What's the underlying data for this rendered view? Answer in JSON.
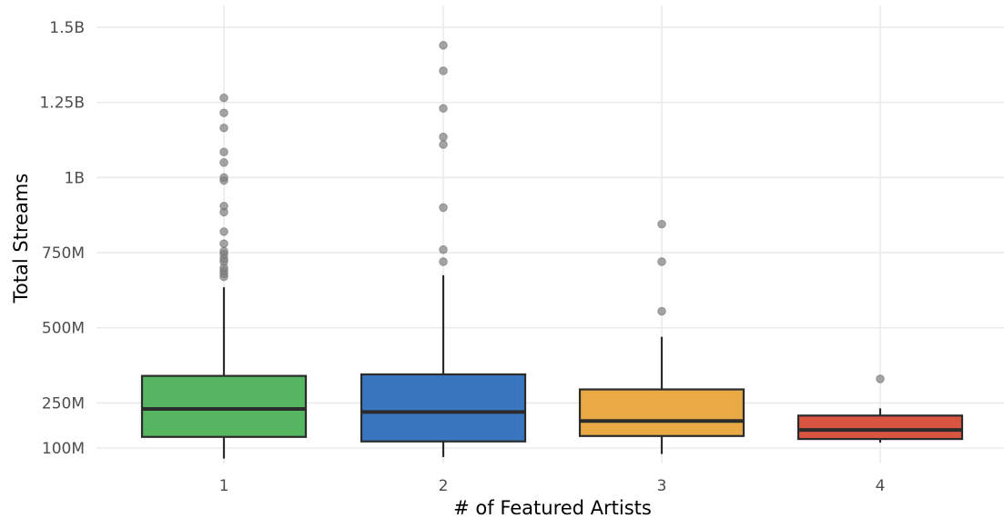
{
  "chart_data": {
    "type": "boxplot",
    "title": "",
    "xlabel": "# of Featured Artists",
    "ylabel": "Total Streams",
    "categories": [
      "1",
      "2",
      "3",
      "4"
    ],
    "y_ticks": [
      {
        "value": 100000000,
        "label": "100M"
      },
      {
        "value": 250000000,
        "label": "250M"
      },
      {
        "value": 500000000,
        "label": "500M"
      },
      {
        "value": 750000000,
        "label": "750M"
      },
      {
        "value": 1000000000,
        "label": "1B"
      },
      {
        "value": 1250000000,
        "label": "1.25B"
      },
      {
        "value": 1500000000,
        "label": "1.5B"
      }
    ],
    "ylim": [
      50000000,
      1560000000
    ],
    "grid": true,
    "legend": "none",
    "boxes": [
      {
        "category": "1",
        "color": "#55b560",
        "whisker_low": 65000000,
        "q1": 137000000,
        "median": 230000000,
        "q3": 340000000,
        "whisker_high": 635000000,
        "outliers": [
          670000000,
          680000000,
          690000000,
          700000000,
          720000000,
          730000000,
          745000000,
          755000000,
          780000000,
          820000000,
          885000000,
          905000000,
          990000000,
          1000000000,
          1050000000,
          1085000000,
          1165000000,
          1215000000,
          1265000000
        ]
      },
      {
        "category": "2",
        "color": "#3a76c0",
        "whisker_low": 70000000,
        "q1": 122000000,
        "median": 220000000,
        "q3": 345000000,
        "whisker_high": 675000000,
        "outliers": [
          720000000,
          760000000,
          900000000,
          1110000000,
          1135000000,
          1230000000,
          1355000000,
          1440000000
        ]
      },
      {
        "category": "3",
        "color": "#e9a944",
        "whisker_low": 80000000,
        "q1": 140000000,
        "median": 190000000,
        "q3": 295000000,
        "whisker_high": 470000000,
        "outliers": [
          555000000,
          720000000,
          845000000
        ]
      },
      {
        "category": "4",
        "color": "#d95541",
        "whisker_low": 118000000,
        "q1": 130000000,
        "median": 160000000,
        "q3": 208000000,
        "whisker_high": 232000000,
        "outliers": [
          330000000
        ]
      }
    ]
  }
}
